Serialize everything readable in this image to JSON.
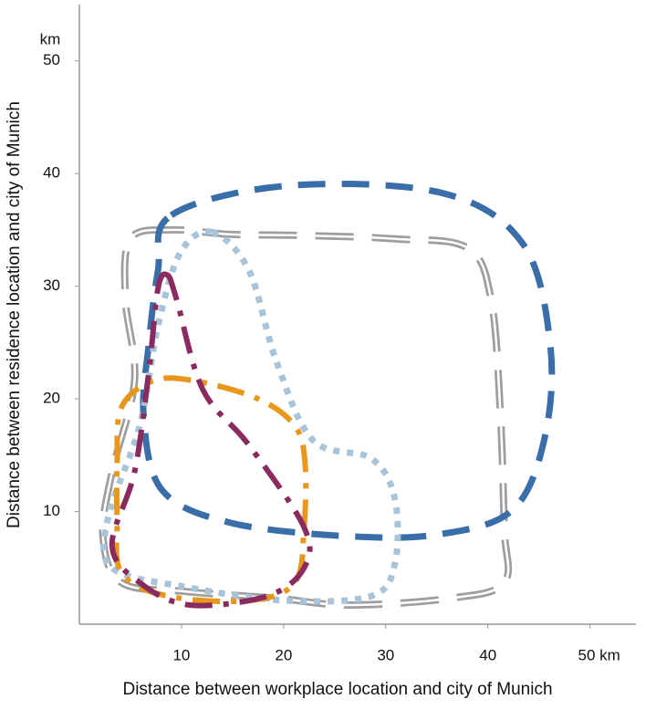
{
  "chart_data": {
    "type": "line",
    "x_label": "Distance between workplace location and city of Munich",
    "y_label": "Distance between residence location and city of Munich",
    "y_unit": "km",
    "xlim": [
      0,
      54.5
    ],
    "ylim": [
      0,
      55
    ],
    "xticks": [
      10,
      20,
      30,
      40,
      {
        "value": 50,
        "label": "50 km"
      }
    ],
    "yticks": [
      10,
      20,
      30,
      40,
      50
    ],
    "closed": true,
    "series": [
      {
        "color": "#9e9e9e",
        "dash": "double",
        "x": [
          9.0,
          5.0,
          4.5,
          5.4,
          3.2,
          2.3,
          4.1,
          10.4,
          19.3,
          26.4,
          36.3,
          41.6,
          41.6,
          41.2,
          40.3,
          38.0,
          30.9,
          22.0,
          14.8
        ],
        "values": [
          35.0,
          34.2,
          28.9,
          21.6,
          13.5,
          7.8,
          3.7,
          2.9,
          2.3,
          1.7,
          2.3,
          3.7,
          8.6,
          19.2,
          28.9,
          33.4,
          34.2,
          34.5,
          34.6
        ]
      },
      {
        "color": "#3a6ea8",
        "dash": "dashed",
        "x": [
          9.0,
          20.2,
          35.4,
          43.4,
          46.1,
          45.6,
          42.5,
          35.4,
          26.4,
          14.8,
          8.1,
          6.3,
          6.8,
          7.7
        ],
        "values": [
          36.3,
          38.9,
          38.3,
          33.8,
          24.9,
          16.7,
          10.2,
          8.0,
          7.8,
          9.0,
          11.9,
          18.4,
          24.9,
          31.4
        ]
      },
      {
        "color": "#a9c3d8",
        "dash": "dotted",
        "x": [
          13.0,
          16.6,
          19.3,
          22.9,
          28.6,
          30.9,
          30.9,
          28.6,
          20.2,
          10.4,
          3.2,
          2.8,
          5.9,
          7.7,
          9.9
        ],
        "values": [
          34.8,
          31.4,
          23.3,
          16.3,
          14.7,
          11.1,
          5.4,
          2.5,
          2.1,
          3.3,
          5.0,
          9.4,
          17.6,
          26.5,
          33.0
        ]
      },
      {
        "color": "#e8961c",
        "dash": "dashdot",
        "x": [
          3.7,
          4.1,
          7.2,
          11.3,
          17.5,
          21.1,
          22.1,
          22.0,
          21.1,
          16.6,
          8.6,
          4.1,
          3.7
        ],
        "values": [
          14.3,
          19.2,
          21.6,
          21.6,
          20.0,
          17.6,
          14.3,
          8.6,
          3.7,
          2.1,
          2.5,
          4.6,
          9.4
        ]
      },
      {
        "color": "#8b2a5e",
        "dash": "dashdot",
        "x": [
          8.6,
          9.5,
          12.1,
          16.6,
          22.0,
          22.0,
          18.4,
          10.8,
          5.9,
          3.2,
          5.4,
          6.8,
          7.7
        ],
        "values": [
          31.0,
          28.9,
          20.8,
          15.9,
          8.6,
          5.0,
          2.5,
          1.7,
          3.7,
          7.0,
          13.5,
          22.4,
          29.8
        ]
      }
    ]
  }
}
